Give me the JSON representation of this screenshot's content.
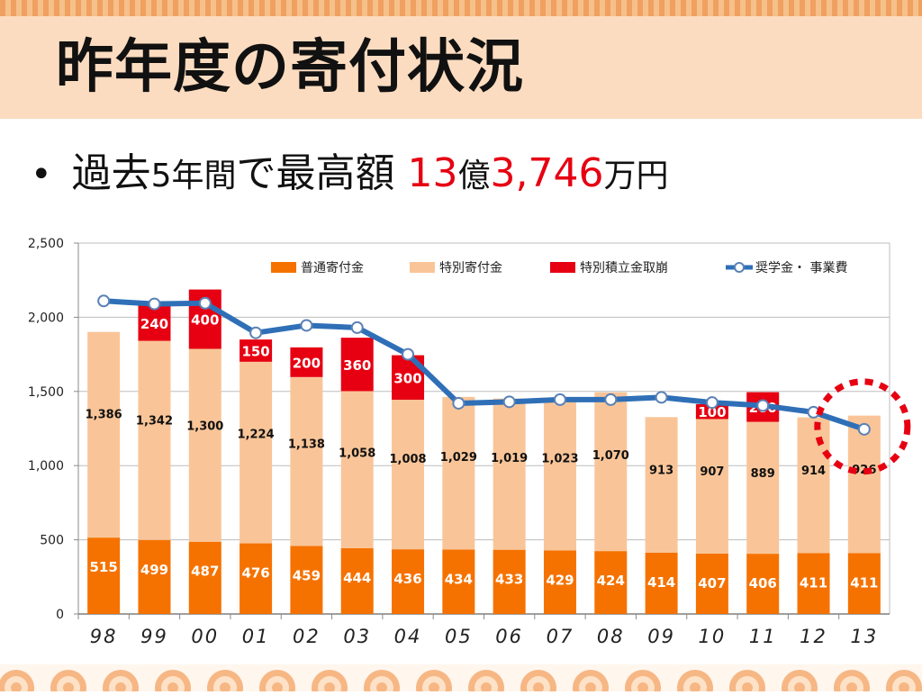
{
  "title": "昨年度の寄付状況",
  "headline": {
    "bullet": "•",
    "text1": "過去",
    "num": "5",
    "text2": "年間で最高額",
    "amount1": "13",
    "unit1": "億",
    "amount2": "3,746",
    "unit2": "万円"
  },
  "colors": {
    "general": "#f57200",
    "special": "#f9c598",
    "reserve": "#e60012",
    "line": "#2f6fb7",
    "highlight": "#e60012"
  },
  "chart_data": {
    "type": "bar",
    "stacked": true,
    "categories": [
      "98",
      "99",
      "00",
      "01",
      "02",
      "03",
      "04",
      "05",
      "06",
      "07",
      "08",
      "09",
      "10",
      "11",
      "12",
      "13"
    ],
    "series": [
      {
        "name": "普通寄付金",
        "values": [
          515,
          499,
          487,
          476,
          459,
          444,
          436,
          434,
          433,
          429,
          424,
          414,
          407,
          406,
          411,
          411
        ]
      },
      {
        "name": "特別寄付金",
        "values": [
          1386,
          1342,
          1300,
          1224,
          1138,
          1058,
          1008,
          1029,
          1019,
          1023,
          1070,
          913,
          907,
          889,
          914,
          926
        ]
      },
      {
        "name": "特別積立金取崩",
        "values": [
          0,
          240,
          400,
          150,
          200,
          360,
          300,
          0,
          0,
          0,
          0,
          0,
          100,
          200,
          0,
          0
        ]
      }
    ],
    "line_series": {
      "name": "奨学金・ 事業費",
      "values": [
        2110,
        2090,
        2095,
        1895,
        1945,
        1930,
        1750,
        1420,
        1430,
        1445,
        1445,
        1460,
        1425,
        1405,
        1360,
        1245
      ]
    },
    "ylim": [
      0,
      2500
    ],
    "yticks": [
      "0",
      "500",
      "1,000",
      "1,500",
      "2,000",
      "2,500"
    ],
    "ytick_values": [
      0,
      500,
      1000,
      1500,
      2000,
      2500
    ],
    "legend": "top-right",
    "grid": true
  }
}
